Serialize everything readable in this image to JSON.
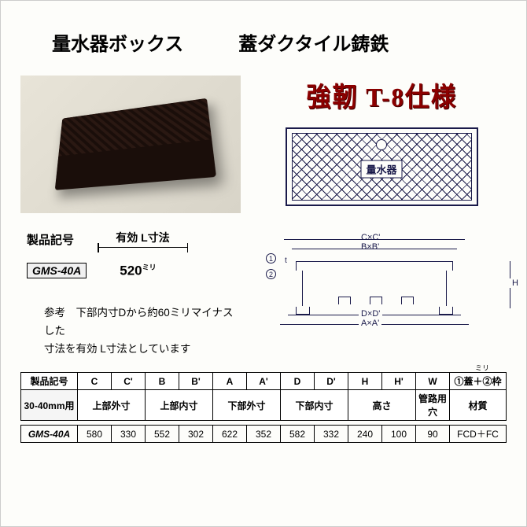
{
  "header": {
    "title1": "量水器ボックス",
    "title2": "蓋ダクタイル鋳鉄"
  },
  "spec_badge": "強靭 T-8仕様",
  "diagram_top": {
    "cover_text": "量水器"
  },
  "left_info": {
    "product_code_label": "製品記号",
    "effective_l_label": "有効 L寸法",
    "code": "GMS-40A",
    "dimension_value": "520",
    "dimension_unit": "ミリ",
    "note_line1": "参考　下部内寸Dから約60ミリマイナスした",
    "note_line2": "寸法を有効 L寸法としています"
  },
  "side_diagram": {
    "cxc": "C×C'",
    "bxb": "B×B'",
    "dxd": "D×D'",
    "axa": "A×A'",
    "h": "H",
    "t": "t",
    "num1": "1",
    "num2": "2"
  },
  "table": {
    "unit_note": "ミリ",
    "header_row1": [
      "製品記号",
      "C",
      "C'",
      "B",
      "B'",
      "A",
      "A'",
      "D",
      "D'",
      "H",
      "H'",
      "W",
      "①蓋＋②枠"
    ],
    "header_row2": [
      "30-40mm用",
      "上部外寸",
      "",
      "上部内寸",
      "",
      "下部外寸",
      "",
      "下部内寸",
      "",
      "高さ",
      "",
      "管路用穴",
      "材質"
    ],
    "colspans2": [
      1,
      2,
      0,
      2,
      0,
      2,
      0,
      2,
      0,
      2,
      0,
      1,
      1
    ],
    "data_row": [
      "GMS-40A",
      "580",
      "330",
      "552",
      "302",
      "622",
      "352",
      "582",
      "332",
      "240",
      "100",
      "90",
      "FCD＋FC"
    ]
  },
  "colors": {
    "text": "#000000",
    "diagram": "#1a1a4a",
    "spec": "#8b0000",
    "bg": "#fdfdfa"
  }
}
